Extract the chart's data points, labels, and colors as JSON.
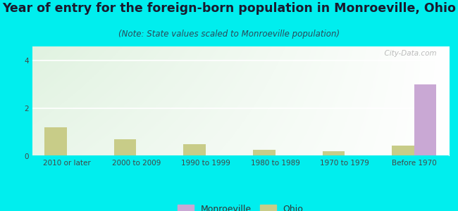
{
  "title": "Year of entry for the foreign-born population in Monroeville, Ohio",
  "subtitle": "(Note: State values scaled to Monroeville population)",
  "categories": [
    "2010 or later",
    "2000 to 2009",
    "1990 to 1999",
    "1980 to 1989",
    "1970 to 1979",
    "Before 1970"
  ],
  "monroeville_values": [
    0,
    0,
    0,
    0,
    0,
    3.0
  ],
  "ohio_values": [
    1.2,
    0.7,
    0.5,
    0.28,
    0.2,
    0.45
  ],
  "monroeville_color": "#c9a8d4",
  "ohio_color": "#c8cc88",
  "background_outer": "#00eeee",
  "ylim": [
    0,
    4.6
  ],
  "yticks": [
    0,
    2,
    4
  ],
  "bar_width": 0.32,
  "watermark": "  City-Data.com",
  "title_fontsize": 12.5,
  "subtitle_fontsize": 8.5,
  "tick_fontsize": 7.5,
  "legend_fontsize": 9
}
